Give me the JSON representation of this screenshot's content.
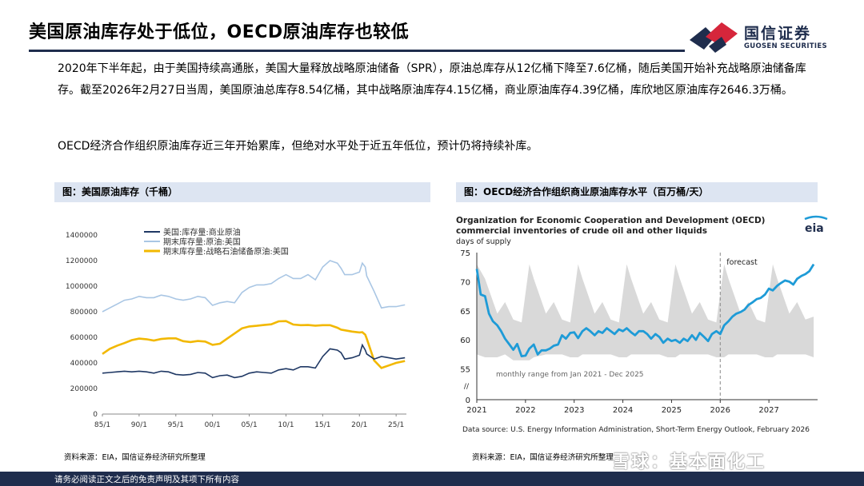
{
  "slide_title": "美国原油库存处于低位，OECD原油库存也较低",
  "logo": {
    "cn": "国信证券",
    "en": "GUOSEN SECURITIES",
    "mark_colors": [
      "#1f2d4d",
      "#d6263b"
    ]
  },
  "paragraphs": [
    "2020年下半年起，由于美国持续高通胀，美国大量释放战略原油储备（SPR），原油总库存从12亿桶下降至7.6亿桶，随后美国开始补充战略原油储备库存。截至2026年2月27日当周，美国原油总库存8.54亿桶，其中战略原油库存4.15亿桶，商业原油库存4.39亿桶，库欣地区原油库存2646.3万桶。",
    "OECD经济合作组织原油库存近三年开始累库，但绝对水平处于近五年低位，预计仍将持续补库。"
  ],
  "left_panel": {
    "header": "图：美国原油库存（千桶）",
    "source": "资料来源：EIA，国信证券经济研究所整理"
  },
  "right_panel": {
    "header": "图：OECD经济合作组织商业原油库存水平（百万桶/天）",
    "source": "资料来源：EIA，国信证券经济研究所整理"
  },
  "watermark": "雪球：基本面化工",
  "footer": "请务必阅读正文之后的免责声明及其项下所有内容",
  "chart_data": [
    {
      "type": "line",
      "title": "",
      "x_ticks": [
        "85/1",
        "90/1",
        "95/1",
        "00/1",
        "05/1",
        "10/1",
        "15/1",
        "20/1",
        "25/1"
      ],
      "x_range": [
        1985.0,
        2026.4
      ],
      "ylim": [
        0,
        1400000
      ],
      "y_ticks": [
        0,
        200000,
        400000,
        600000,
        800000,
        1000000,
        1200000,
        1400000
      ],
      "legend_position": "top-left",
      "grid": false,
      "series": [
        {
          "name": "美国:库存量:商业原油",
          "color": "#1f3864",
          "x": [
            1985.0,
            1986,
            1987,
            1988,
            1989,
            1990,
            1991,
            1992,
            1993,
            1994,
            1995,
            1996,
            1997,
            1998,
            1999,
            2000,
            2001,
            2002,
            2003,
            2004,
            2005,
            2006,
            2007,
            2008,
            2009,
            2010,
            2011,
            2012,
            2013,
            2014,
            2015,
            2016,
            2017,
            2017.5,
            2018,
            2019,
            2020,
            2020.4,
            2020.8,
            2021,
            2022,
            2023,
            2024,
            2025,
            2026.2
          ],
          "y": [
            320000,
            325000,
            330000,
            335000,
            330000,
            335000,
            330000,
            320000,
            335000,
            330000,
            310000,
            305000,
            310000,
            325000,
            320000,
            285000,
            300000,
            305000,
            285000,
            295000,
            320000,
            330000,
            325000,
            320000,
            345000,
            355000,
            345000,
            370000,
            370000,
            360000,
            450000,
            510000,
            500000,
            480000,
            430000,
            440000,
            460000,
            540000,
            500000,
            470000,
            430000,
            450000,
            440000,
            430000,
            440000
          ]
        },
        {
          "name": "期末库存量:原油:美国",
          "color": "#a9c6e4",
          "x": [
            1985.0,
            1986,
            1987,
            1988,
            1989,
            1990,
            1991,
            1992,
            1993,
            1994,
            1995,
            1996,
            1997,
            1998,
            1999,
            2000,
            2001,
            2002,
            2003,
            2004,
            2005,
            2006,
            2007,
            2008,
            2009,
            2010,
            2011,
            2012,
            2013,
            2014,
            2015,
            2016,
            2017,
            2017.5,
            2018,
            2019,
            2020,
            2020.4,
            2020.8,
            2021,
            2022,
            2023,
            2024,
            2025,
            2026.2
          ],
          "y": [
            800000,
            830000,
            860000,
            890000,
            900000,
            920000,
            910000,
            910000,
            930000,
            920000,
            900000,
            890000,
            900000,
            920000,
            910000,
            850000,
            870000,
            880000,
            870000,
            950000,
            990000,
            1010000,
            1010000,
            1020000,
            1060000,
            1090000,
            1060000,
            1060000,
            1090000,
            1050000,
            1150000,
            1200000,
            1180000,
            1140000,
            1090000,
            1090000,
            1110000,
            1180000,
            1150000,
            1080000,
            960000,
            830000,
            840000,
            840000,
            854000
          ]
        },
        {
          "name": "期末库存量:战略石油储备原油:美国",
          "color": "#f2b800",
          "x": [
            1985.0,
            1986,
            1987,
            1988,
            1989,
            1990,
            1991,
            1992,
            1993,
            1994,
            1995,
            1996,
            1997,
            1998,
            1999,
            2000,
            2001,
            2002,
            2003,
            2004,
            2005,
            2006,
            2007,
            2008,
            2009,
            2010,
            2011,
            2012,
            2013,
            2014,
            2015,
            2016,
            2017,
            2017.5,
            2018,
            2019,
            2020,
            2020.4,
            2020.8,
            2021,
            2022,
            2023,
            2024,
            2025,
            2026.2
          ],
          "y": [
            470000,
            510000,
            535000,
            555000,
            578000,
            590000,
            585000,
            575000,
            587000,
            592000,
            592000,
            570000,
            563000,
            571000,
            567000,
            541000,
            550000,
            590000,
            630000,
            670000,
            685000,
            690000,
            696000,
            702000,
            725000,
            727000,
            700000,
            695000,
            696000,
            691000,
            695000,
            695000,
            675000,
            660000,
            655000,
            645000,
            638000,
            640000,
            620000,
            590000,
            420000,
            360000,
            380000,
            400000,
            415000
          ]
        }
      ]
    },
    {
      "type": "area",
      "title": "Organization for Economic Cooperation and Development (OECD)\ncommercial inventories of crude oil and other liquids",
      "ylabel": "days of supply",
      "ylim": [
        50,
        75
      ],
      "y_ticks": [
        0,
        55,
        60,
        65,
        70,
        75
      ],
      "axis_break": true,
      "x_ticks": [
        "2021",
        "2022",
        "2023",
        "2024",
        "2025",
        "2026",
        "2027"
      ],
      "x_range": [
        2021.0,
        2028.0
      ],
      "forecast_start": 2026.0,
      "forecast_label": "forecast",
      "range_label": "monthly range from Jan 2021 - Dec 2025",
      "data_source": "Data source: U.S. Energy Information Administration, Short-Term Energy Outlook, February 2026",
      "logo_text": "eia",
      "band_color": "#d9d9d9",
      "grid": false,
      "series": [
        {
          "name": "",
          "color": "#1e9bd7",
          "x": [
            2021.0,
            2021.08,
            2021.17,
            2021.25,
            2021.33,
            2021.42,
            2021.5,
            2021.58,
            2021.67,
            2021.75,
            2021.83,
            2021.92,
            2022.0,
            2022.08,
            2022.17,
            2022.25,
            2022.33,
            2022.42,
            2022.5,
            2022.58,
            2022.67,
            2022.75,
            2022.83,
            2022.92,
            2023.0,
            2023.08,
            2023.17,
            2023.25,
            2023.33,
            2023.42,
            2023.5,
            2023.58,
            2023.67,
            2023.75,
            2023.83,
            2023.92,
            2024.0,
            2024.08,
            2024.17,
            2024.25,
            2024.33,
            2024.42,
            2024.5,
            2024.58,
            2024.67,
            2024.75,
            2024.83,
            2024.92,
            2025.0,
            2025.08,
            2025.17,
            2025.25,
            2025.33,
            2025.42,
            2025.5,
            2025.58,
            2025.67,
            2025.75,
            2025.83,
            2025.92,
            2026.0,
            2026.08,
            2026.17,
            2026.25,
            2026.33,
            2026.42,
            2026.5,
            2026.58,
            2026.67,
            2026.75,
            2026.83,
            2026.92,
            2027.0,
            2027.08,
            2027.17,
            2027.25,
            2027.33,
            2027.42,
            2027.5,
            2027.58,
            2027.67,
            2027.75,
            2027.83,
            2027.92
          ],
          "y": [
            72.2,
            67.8,
            67.5,
            64.5,
            63.2,
            62.5,
            61.5,
            60.2,
            59.2,
            58.3,
            59.3,
            57.2,
            57.3,
            58.5,
            59.2,
            57.5,
            58.2,
            58.2,
            58.5,
            59.0,
            59.2,
            60.8,
            60.2,
            61.2,
            61.3,
            60.3,
            61.5,
            62.0,
            61.5,
            60.8,
            61.5,
            61.2,
            62.0,
            61.5,
            61.0,
            61.8,
            61.5,
            62.0,
            61.3,
            60.8,
            61.5,
            61.5,
            61.0,
            60.2,
            61.0,
            60.5,
            59.5,
            60.2,
            59.8,
            60.0,
            59.5,
            60.2,
            59.8,
            60.8,
            60.0,
            61.2,
            60.5,
            59.8,
            61.0,
            61.5,
            61.0,
            62.5,
            63.2,
            64.0,
            64.5,
            64.8,
            65.2,
            66.0,
            66.5,
            67.0,
            67.2,
            67.8,
            68.8,
            68.5,
            69.3,
            69.8,
            70.2,
            70.0,
            69.5,
            70.5,
            71.0,
            71.3,
            71.8,
            73.0
          ]
        }
      ],
      "band": {
        "x": [
          2021.0,
          2021.17,
          2021.42,
          2021.58,
          2021.75,
          2021.92,
          2022.08,
          2022.17,
          2022.42,
          2022.58,
          2022.75,
          2022.92,
          2023.08,
          2023.17,
          2023.42,
          2023.58,
          2023.75,
          2023.92,
          2024.08,
          2024.17,
          2024.42,
          2024.58,
          2024.75,
          2024.92,
          2025.08,
          2025.17,
          2025.42,
          2025.58,
          2025.75,
          2025.92,
          2026.08,
          2026.17,
          2026.42,
          2026.58,
          2026.75,
          2026.92,
          2027.08,
          2027.17,
          2027.42,
          2027.58,
          2027.75,
          2027.92
        ],
        "low": [
          57.5,
          57.0,
          57.0,
          57.5,
          56.5,
          56.5,
          56.5,
          57.0,
          57.5,
          57.5,
          57.5,
          57.0,
          57.0,
          57.5,
          57.5,
          57.5,
          57.5,
          57.0,
          57.0,
          57.5,
          57.5,
          57.5,
          57.5,
          57.0,
          57.0,
          57.5,
          57.5,
          57.5,
          57.5,
          57.0,
          57.0,
          57.5,
          57.5,
          57.5,
          57.5,
          57.0,
          57.0,
          57.5,
          57.5,
          57.5,
          57.5,
          57.0
        ],
        "high": [
          73.0,
          70.5,
          64.5,
          66.5,
          63.5,
          63.0,
          73.0,
          70.5,
          64.5,
          66.5,
          63.5,
          63.0,
          73.0,
          70.5,
          64.5,
          66.5,
          63.5,
          63.0,
          73.0,
          70.5,
          64.5,
          66.5,
          63.5,
          63.0,
          73.0,
          70.5,
          64.5,
          66.5,
          63.5,
          63.0,
          73.0,
          70.5,
          64.5,
          66.5,
          63.5,
          63.0,
          73.0,
          70.5,
          64.5,
          66.5,
          63.5,
          64.0
        ]
      }
    }
  ]
}
